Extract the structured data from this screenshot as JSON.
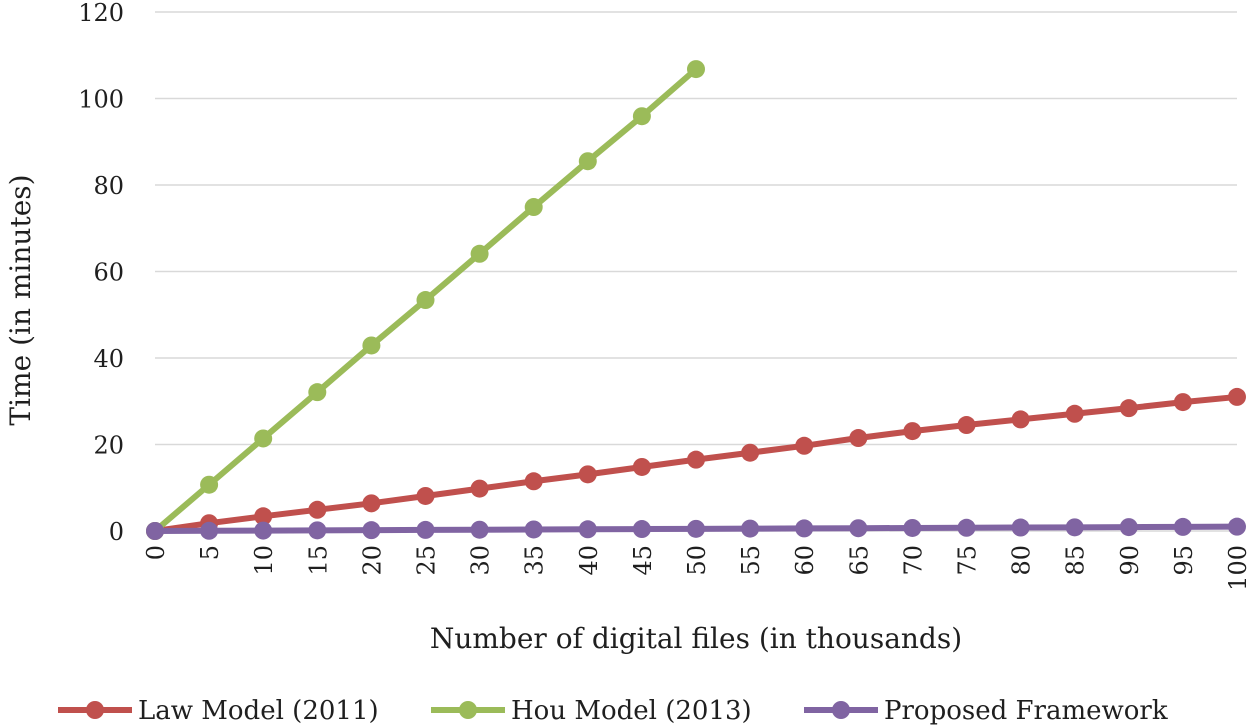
{
  "chart_data": {
    "type": "line",
    "title": "",
    "xlabel": "Number of digital files (in thousands)",
    "ylabel": "Time (in minutes)",
    "x": [
      0,
      5,
      10,
      15,
      20,
      25,
      30,
      35,
      40,
      45,
      50,
      55,
      60,
      65,
      70,
      75,
      80,
      85,
      90,
      95,
      100
    ],
    "ylim": [
      0,
      120
    ],
    "yticks": [
      0,
      20,
      40,
      60,
      80,
      100,
      120
    ],
    "grid": true,
    "legend_position": "bottom",
    "series": [
      {
        "name": "Law Model (2011)",
        "color": "#c0504d",
        "values": [
          0,
          1.8,
          3.4,
          4.9,
          6.4,
          8.1,
          9.8,
          11.5,
          13.1,
          14.8,
          16.5,
          18.1,
          19.7,
          21.5,
          23.1,
          24.5,
          25.8,
          27.1,
          28.4,
          29.8,
          31.0
        ]
      },
      {
        "name": "Hou Model (2013)",
        "color": "#9bbb59",
        "values": [
          0,
          10.7,
          21.4,
          32.1,
          42.9,
          53.4,
          64.1,
          74.9,
          85.5,
          95.9,
          106.8,
          null,
          null,
          null,
          null,
          null,
          null,
          null,
          null,
          null,
          null
        ]
      },
      {
        "name": "Proposed Framework",
        "color": "#8064a2",
        "values": [
          0,
          0.05,
          0.1,
          0.15,
          0.2,
          0.25,
          0.3,
          0.35,
          0.4,
          0.45,
          0.5,
          0.55,
          0.6,
          0.65,
          0.7,
          0.75,
          0.8,
          0.85,
          0.9,
          0.95,
          1.0
        ]
      }
    ]
  }
}
